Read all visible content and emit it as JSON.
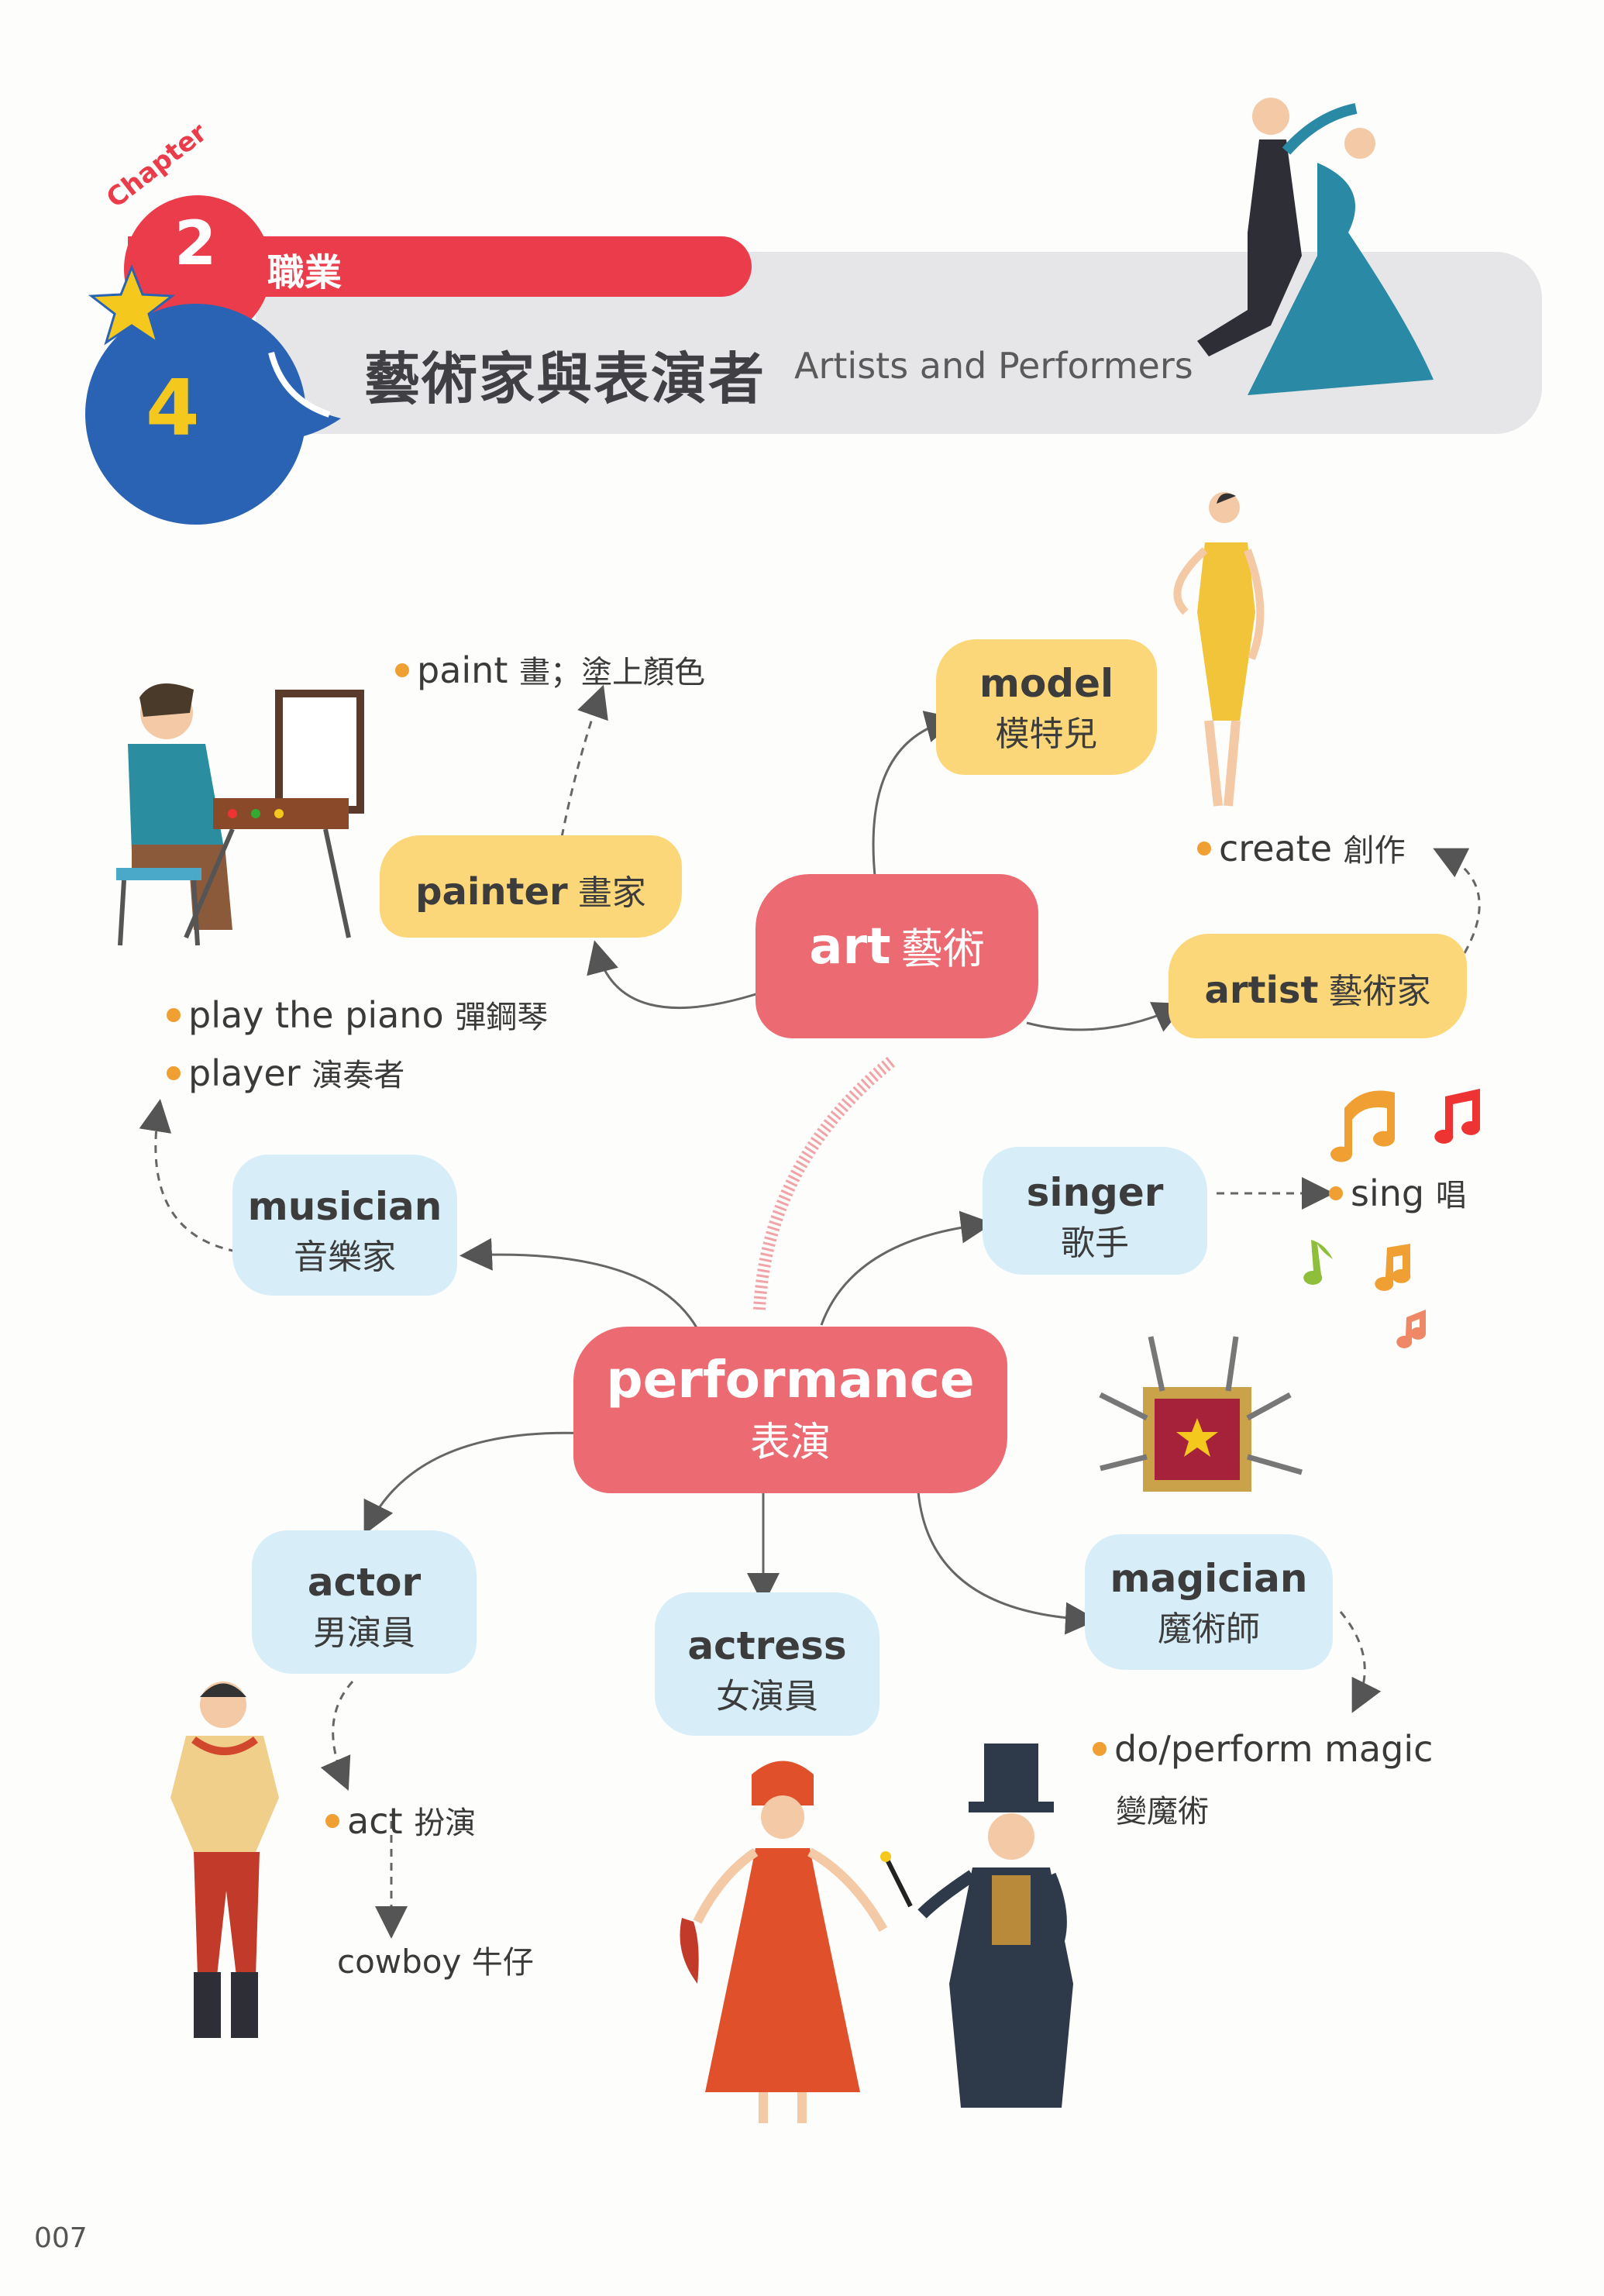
{
  "header": {
    "chapter_word": "Chapter",
    "chapter_number": "2",
    "chapter_label": "職業",
    "section_number": "4",
    "title_zh": "藝術家與表演者",
    "title_en": "Artists  and  Performers"
  },
  "nodes": {
    "art": {
      "en": "art",
      "zh": "藝術"
    },
    "performance": {
      "en": "performance",
      "zh": "表演"
    },
    "model": {
      "en": "model",
      "zh": "模特兒"
    },
    "painter": {
      "en": "painter",
      "zh": "畫家"
    },
    "artist": {
      "en": "artist",
      "zh": "藝術家"
    },
    "musician": {
      "en": "musician",
      "zh": "音樂家"
    },
    "singer": {
      "en": "singer",
      "zh": "歌手"
    },
    "actor": {
      "en": "actor",
      "zh": "男演員"
    },
    "actress": {
      "en": "actress",
      "zh": "女演員"
    },
    "magician": {
      "en": "magician",
      "zh": "魔術師"
    }
  },
  "leaves": {
    "paint": {
      "en": "paint",
      "zh": "畫；塗上顏色"
    },
    "create": {
      "en": "create",
      "zh": "創作"
    },
    "play_piano": {
      "en": "play the piano",
      "zh": "彈鋼琴"
    },
    "player": {
      "en": "player",
      "zh": "演奏者"
    },
    "sing": {
      "en": "sing",
      "zh": "唱"
    },
    "act": {
      "en": "act",
      "zh": "扮演"
    },
    "cowboy": {
      "en": "cowboy",
      "zh": "牛仔"
    },
    "magic": {
      "en": "do/perform magic",
      "zh": "變魔術"
    }
  },
  "page_number": "007",
  "colors": {
    "red": "#ec6b73",
    "yellow": "#fcd77a",
    "blue": "#d7eef9",
    "dot": "#f0a033",
    "header_blue": "#2a63b3",
    "header_red": "#ea3c4a"
  }
}
